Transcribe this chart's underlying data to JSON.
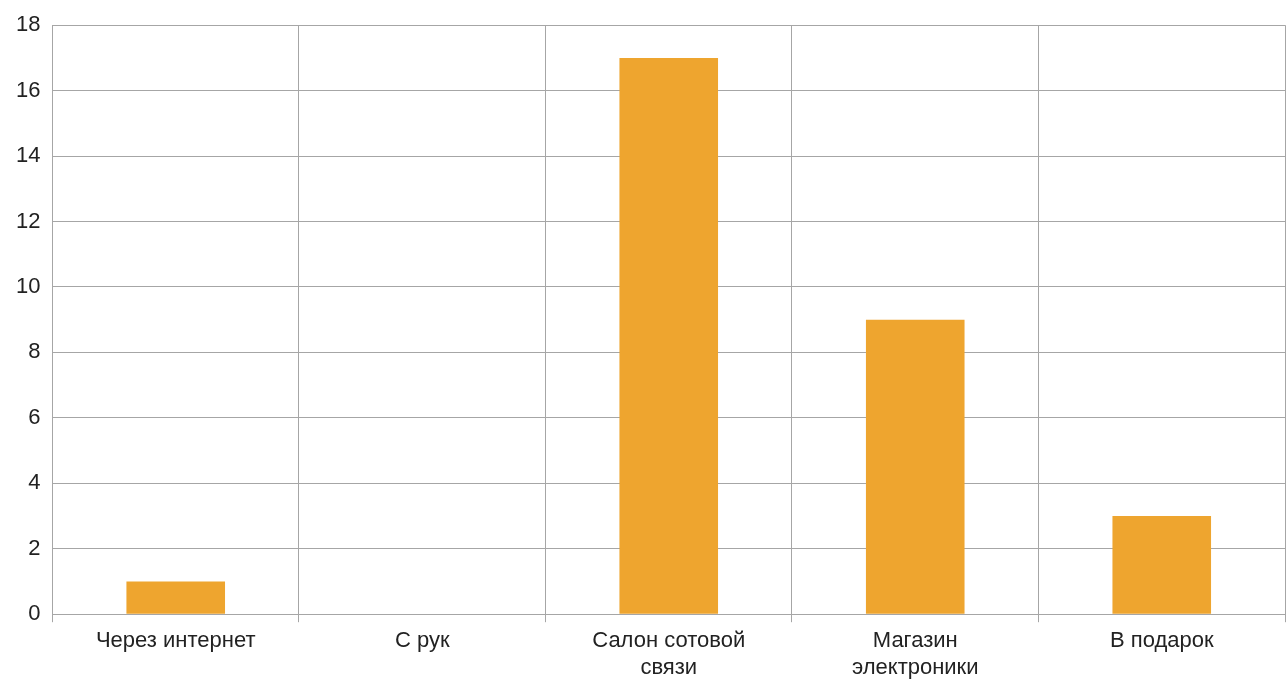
{
  "chart_data": {
    "type": "bar",
    "categories": [
      "Через интернет",
      "С рук",
      "Салон сотовой связи",
      "Магазин электроники",
      "В подарок"
    ],
    "values": [
      1,
      0,
      17,
      9,
      3
    ],
    "color": "#eea52f",
    "ylim": [
      0,
      18
    ],
    "yticks": [
      0,
      2,
      4,
      6,
      8,
      10,
      12,
      14,
      16,
      18
    ],
    "grid": true,
    "legend": false
  }
}
